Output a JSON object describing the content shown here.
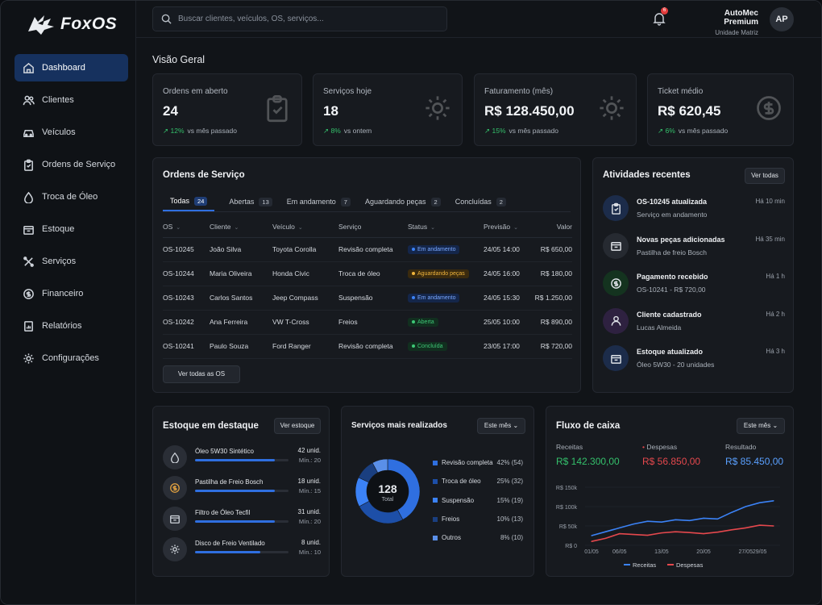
{
  "brand": {
    "name": "FoxOS"
  },
  "nav": [
    {
      "label": "Dashboard",
      "icon": "home-icon"
    },
    {
      "label": "Clientes",
      "icon": "users-icon"
    },
    {
      "label": "Veículos",
      "icon": "car-icon"
    },
    {
      "label": "Ordens de Serviço",
      "icon": "clipboard-icon"
    },
    {
      "label": "Troca de Óleo",
      "icon": "oil-icon"
    },
    {
      "label": "Estoque",
      "icon": "box-icon"
    },
    {
      "label": "Serviços",
      "icon": "tools-icon"
    },
    {
      "label": "Financeiro",
      "icon": "dollar-icon"
    },
    {
      "label": "Relatórios",
      "icon": "report-icon"
    },
    {
      "label": "Configurações",
      "icon": "gear-icon"
    }
  ],
  "topbar": {
    "search_placeholder": "Buscar clientes, veículos, OS, serviços...",
    "notif_count": "6",
    "user_name": "AutoMec Premium",
    "user_unit": "Unidade Matriz",
    "avatar": "AP"
  },
  "overview_title": "Visão Geral",
  "kpis": [
    {
      "label": "Ordens em aberto",
      "value": "24",
      "delta": "12%",
      "delta_text": "vs mês passado"
    },
    {
      "label": "Serviços hoje",
      "value": "18",
      "delta": "8%",
      "delta_text": "vs ontem"
    },
    {
      "label": "Faturamento (mês)",
      "value": "R$ 128.450,00",
      "delta": "15%",
      "delta_text": "vs mês passado"
    },
    {
      "label": "Ticket médio",
      "value": "R$ 620,45",
      "delta": "6%",
      "delta_text": "vs mês passado"
    }
  ],
  "orders": {
    "title": "Ordens de Serviço",
    "tabs": [
      {
        "label": "Todas",
        "count": "24"
      },
      {
        "label": "Abertas",
        "count": "13"
      },
      {
        "label": "Em andamento",
        "count": "7"
      },
      {
        "label": "Aguardando peças",
        "count": "2"
      },
      {
        "label": "Concluídas",
        "count": "2"
      }
    ],
    "columns": [
      "OS",
      "Cliente",
      "Veículo",
      "Serviço",
      "Status",
      "Previsão",
      "Valor"
    ],
    "rows": [
      [
        "OS-10245",
        "João Silva",
        "Toyota Corolla",
        "Revisão completa",
        "Em andamento",
        "24/05 14:00",
        "R$ 650,00"
      ],
      [
        "OS-10244",
        "Maria Oliveira",
        "Honda Civic",
        "Troca de óleo",
        "Aguardando peças",
        "24/05 16:00",
        "R$ 180,00"
      ],
      [
        "OS-10243",
        "Carlos Santos",
        "Jeep Compass",
        "Suspensão",
        "Em andamento",
        "24/05 15:30",
        "R$ 1.250,00"
      ],
      [
        "OS-10242",
        "Ana Ferreira",
        "VW T-Cross",
        "Freios",
        "Aberta",
        "25/05 10:00",
        "R$ 890,00"
      ],
      [
        "OS-10241",
        "Paulo Souza",
        "Ford Ranger",
        "Revisão completa",
        "Concluída",
        "23/05 17:00",
        "R$ 720,00"
      ]
    ],
    "view_all": "Ver todas as OS"
  },
  "activities": {
    "title": "Atividades recentes",
    "view_all": "Ver todas",
    "items": [
      {
        "title": "OS-10245 atualizada",
        "sub": "Serviço em andamento",
        "time": "Há 10 min",
        "icon": "clipboard-icon",
        "color": "#1c2c4a"
      },
      {
        "title": "Novas peças adicionadas",
        "sub": "Pastilha de freio Bosch",
        "time": "Há 35 min",
        "icon": "box-icon",
        "color": "#262a31"
      },
      {
        "title": "Pagamento recebido",
        "sub": "OS-10241 - R$ 720,00",
        "time": "Há 1 h",
        "icon": "dollar-icon",
        "color": "#14331f"
      },
      {
        "title": "Cliente cadastrado",
        "sub": "Lucas Almeida",
        "time": "Há 2 h",
        "icon": "user-icon",
        "color": "#2e2140"
      },
      {
        "title": "Estoque atualizado",
        "sub": "Óleo 5W30 - 20 unidades",
        "time": "Há 3 h",
        "icon": "box-icon",
        "color": "#1c2c4a"
      }
    ]
  },
  "stock": {
    "title": "Estoque em destaque",
    "button": "Ver estoque",
    "items": [
      {
        "name": "Óleo 5W30 Sintético",
        "qty": "42 unid.",
        "min": "Mín.: 20",
        "level": 0.85
      },
      {
        "name": "Pastilha de Freio Bosch",
        "qty": "18 unid.",
        "min": "Mín.: 15",
        "level": 0.85
      },
      {
        "name": "Filtro de Óleo Tecfil",
        "qty": "31 unid.",
        "min": "Mín.: 20",
        "level": 0.85
      },
      {
        "name": "Disco de Freio Ventilado",
        "qty": "8 unid.",
        "min": "Mín.: 10",
        "level": 0.7
      }
    ]
  },
  "services": {
    "title": "Serviços mais realizados",
    "filter": "Este mês",
    "total": "128",
    "total_label": "Total",
    "items": [
      {
        "name": "Revisão completa",
        "pct": "42% (54)",
        "value": 54,
        "color": "#2f6fe0"
      },
      {
        "name": "Troca de óleo",
        "pct": "25% (32)",
        "value": 32,
        "color": "#1d4fa8"
      },
      {
        "name": "Suspensão",
        "pct": "15% (19)",
        "value": 19,
        "color": "#3b82f6"
      },
      {
        "name": "Freios",
        "pct": "10% (13)",
        "value": 13,
        "color": "#1a3f80"
      },
      {
        "name": "Outros",
        "pct": "8% (10)",
        "value": 10,
        "color": "#5a8fe8"
      }
    ]
  },
  "cashflow": {
    "title": "Fluxo de caixa",
    "filter": "Este mês",
    "receitas_label": "Receitas",
    "receitas": "R$ 142.300,00",
    "despesas_label": "Despesas",
    "despesas": "R$ 56.850,00",
    "resultado_label": "Resultado",
    "resultado": "R$ 85.450,00",
    "legend": [
      "Receitas",
      "Despesas"
    ]
  },
  "chart_data": {
    "type": "line",
    "x": [
      "01/05",
      "03/05",
      "06/05",
      "08/05",
      "10/05",
      "13/05",
      "15/05",
      "17/05",
      "20/05",
      "22/05",
      "24/05",
      "27/05",
      "29/05",
      "31/05"
    ],
    "xticks": [
      "01/05",
      "06/05",
      "13/05",
      "20/05",
      "27/05",
      "29/05"
    ],
    "yticks": [
      "R$ 150k",
      "R$ 100k",
      "R$ 50k",
      "R$ 0"
    ],
    "ylim": [
      0,
      150
    ],
    "series": [
      {
        "name": "Receitas",
        "color": "#3b82f6",
        "values": [
          25,
          35,
          45,
          55,
          62,
          60,
          66,
          64,
          70,
          68,
          85,
          100,
          110,
          115
        ]
      },
      {
        "name": "Despesas",
        "color": "#e5484d",
        "values": [
          10,
          18,
          30,
          28,
          26,
          32,
          35,
          33,
          30,
          34,
          40,
          45,
          52,
          50
        ]
      }
    ]
  }
}
